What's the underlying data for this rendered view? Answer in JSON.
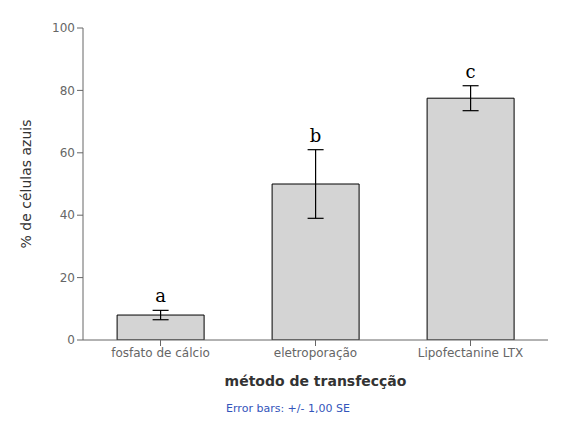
{
  "chart_data": {
    "type": "bar",
    "categories": [
      "fosfato de cálcio",
      "eletroporação",
      "Lipofectanine LTX"
    ],
    "values": [
      8.0,
      50.0,
      77.5
    ],
    "errors": [
      1.5,
      11.0,
      4.0
    ],
    "annotations": [
      {
        "category": "fosfato de cálcio",
        "text": "a"
      },
      {
        "category": "eletroporação",
        "text": "b"
      },
      {
        "category": "Lipofectanine LTX",
        "text": "c"
      }
    ],
    "color": "#d4d4d4",
    "ylabel": "% de células azuis",
    "xlabel": "método de transfecção",
    "footer": "Error bars: +/- 1,00 SE",
    "footer_color": "#3355bb",
    "ylim": [
      0,
      100
    ],
    "yticks": [
      0,
      20,
      40,
      60,
      80,
      100
    ],
    "grid": false
  }
}
